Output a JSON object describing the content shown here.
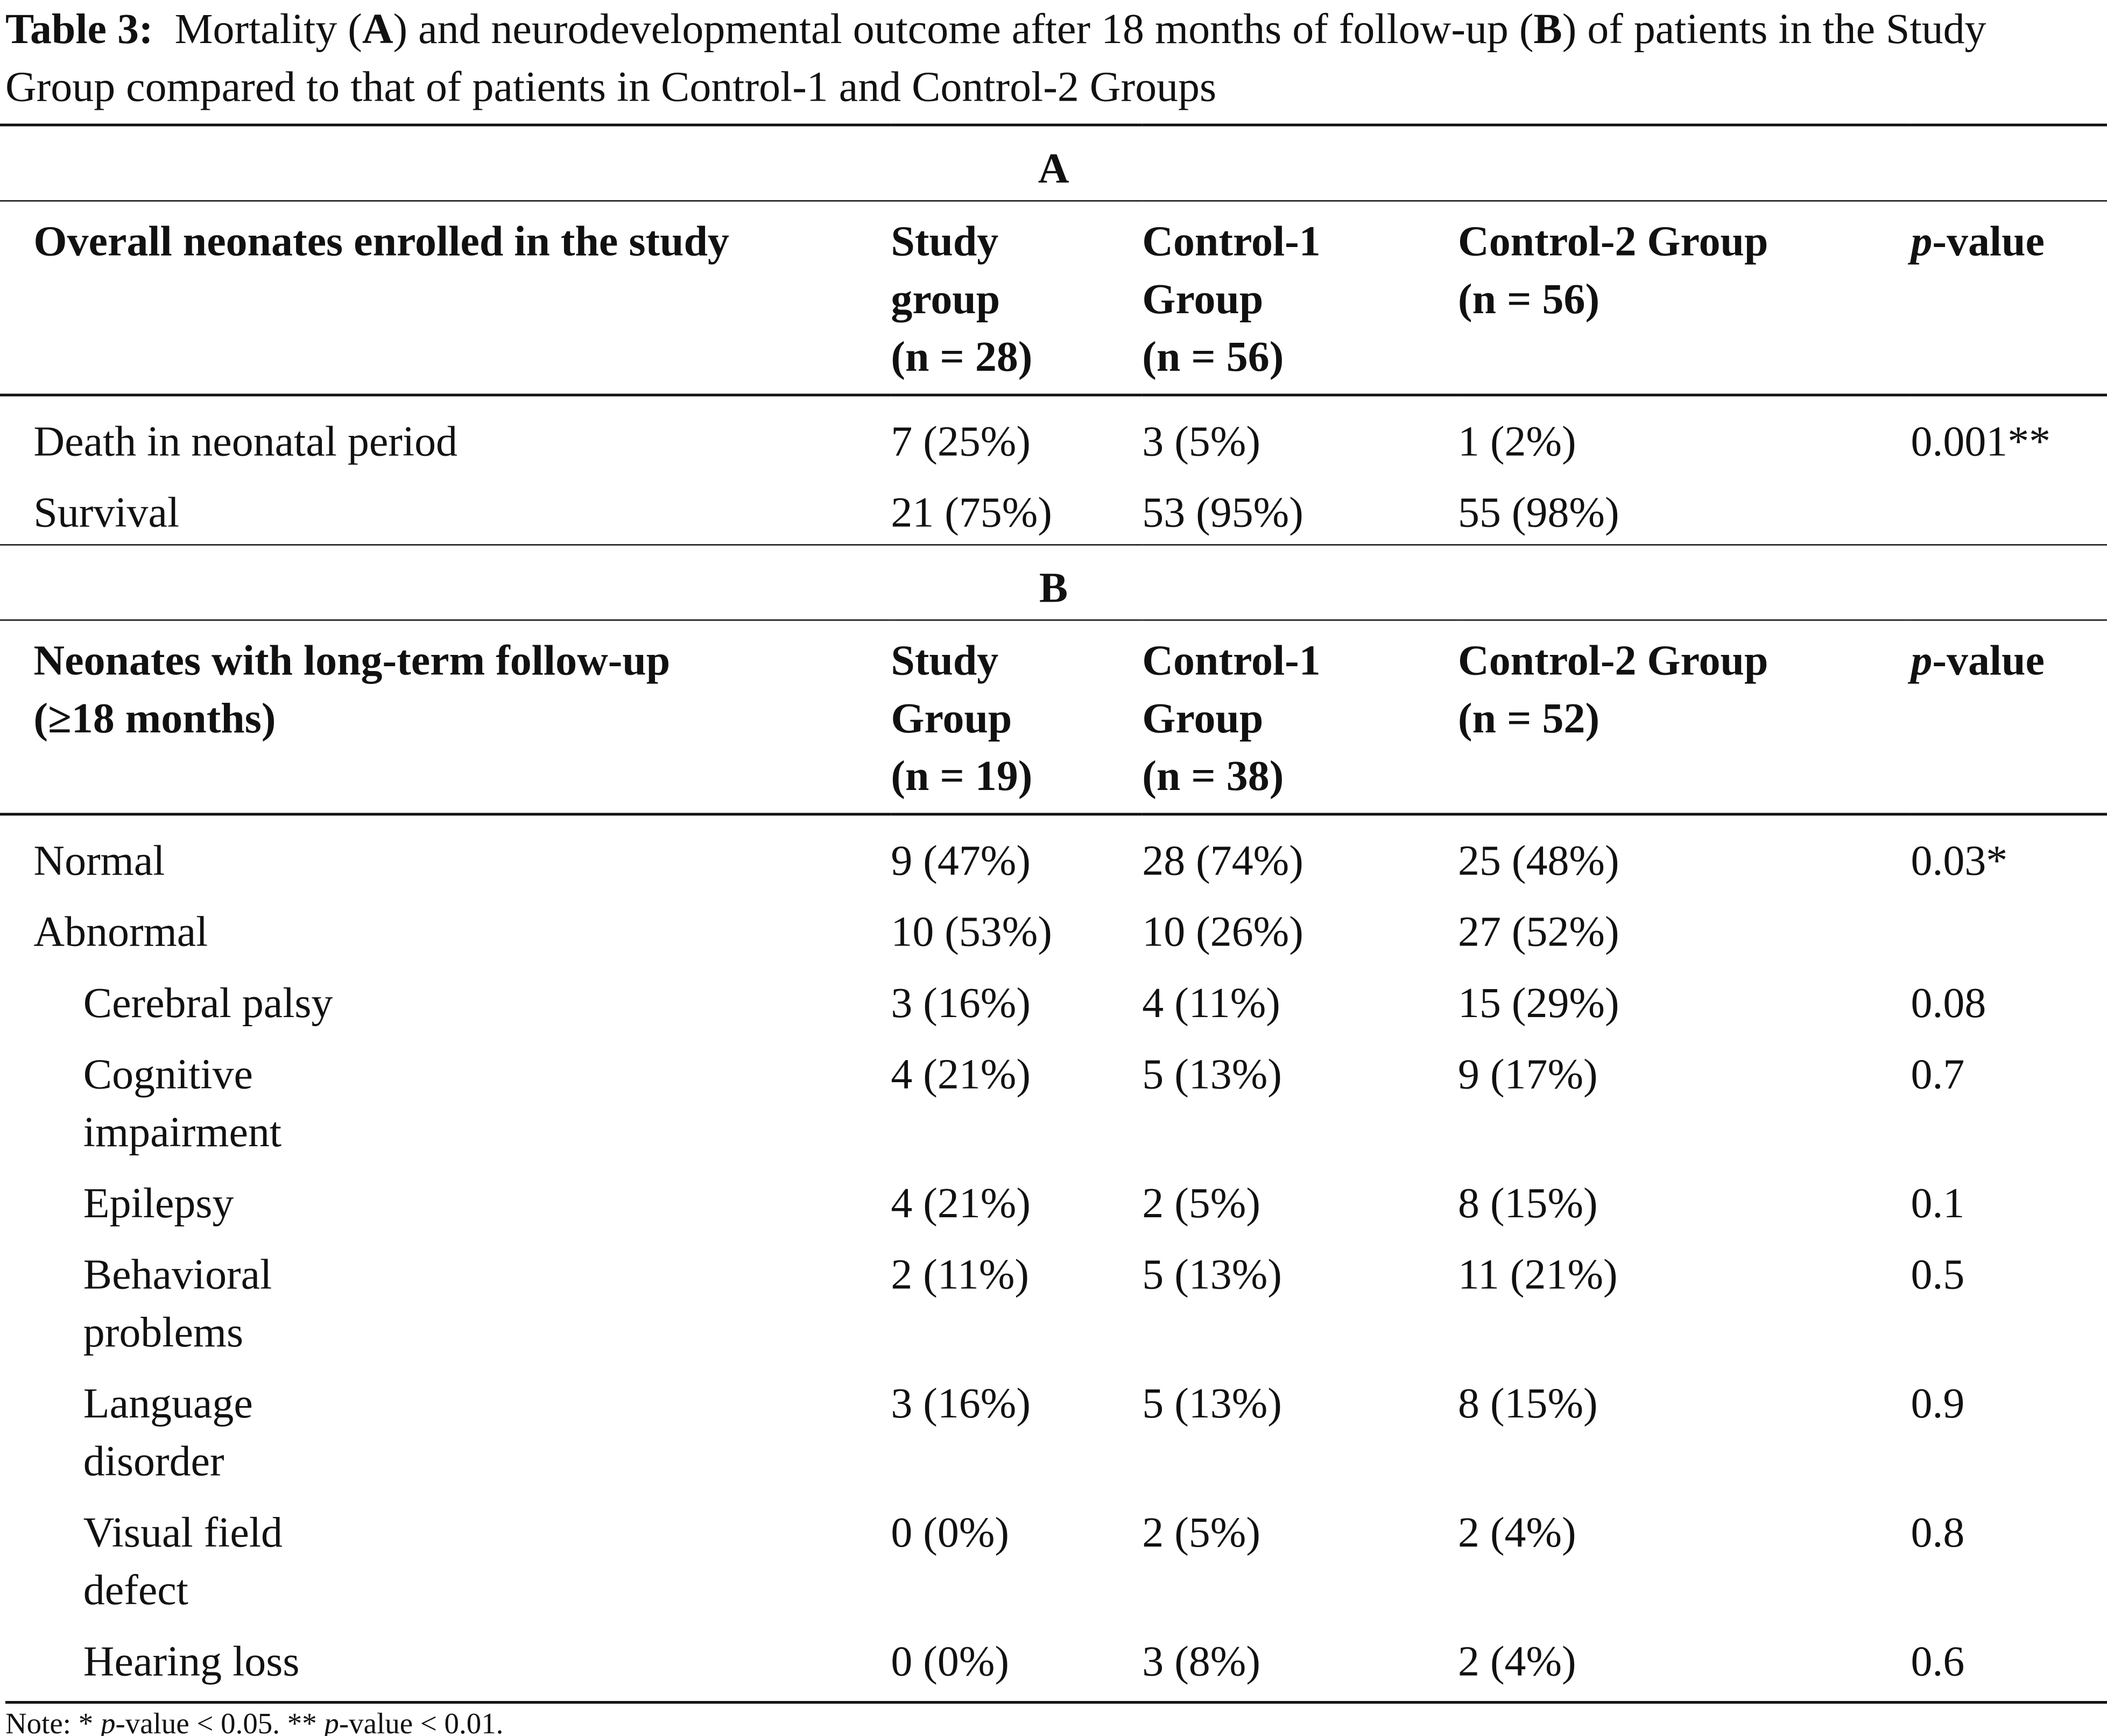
{
  "title": [
    "Table 3:",
    "  Mortality (",
    "A",
    ") and neurodevelopmental outcome after 18 months of follow-up (",
    "B",
    ") of patients in the Study Group compared to that of patients in Control-1 and Control-2 Groups"
  ],
  "sections": [
    {
      "label": "A",
      "header": [
        [
          "Overall neonates enrolled in the study"
        ],
        [
          "Study",
          "group",
          "(n = 28)"
        ],
        [
          "Control-1",
          "Group",
          "(n = 56)"
        ],
        [
          "Control-2 Group",
          "(n = 56)"
        ]
      ],
      "p_header": [
        "p",
        "-value"
      ],
      "rows": [
        [
          "Death in neonatal period",
          "7 (25%)",
          "3 (5%)",
          "1 (2%)",
          "0.001**"
        ],
        [
          "Survival",
          "21 (75%)",
          "53 (95%)",
          "55 (98%)",
          null
        ]
      ]
    },
    {
      "label": "B",
      "header": [
        [
          "Neonates with long-term follow-up",
          "(≥18 months)"
        ],
        [
          "Study",
          "Group",
          "(n = 19)"
        ],
        [
          "Control-1",
          "Group",
          "(n = 38)"
        ],
        [
          "Control-2 Group",
          "(n = 52)"
        ]
      ],
      "p_header": [
        "p",
        "-value"
      ],
      "rows": [
        [
          "Normal",
          "9 (47%)",
          "28 (74%)",
          "25 (48%)",
          "0.03*"
        ],
        [
          "Abnormal",
          "10 (53%)",
          "10 (26%)",
          "27 (52%)",
          null
        ]
      ],
      "subrows": [
        [
          "Cerebral palsy",
          "3 (16%)",
          "4 (11%)",
          "15 (29%)",
          "0.08"
        ],
        [
          "Cognitive impairment",
          "4 (21%)",
          "5 (13%)",
          "9 (17%)",
          "0.7"
        ],
        [
          "Epilepsy",
          "4 (21%)",
          "2 (5%)",
          "8 (15%)",
          "0.1"
        ],
        [
          "Behavioral problems",
          "2 (11%)",
          "5 (13%)",
          "11 (21%)",
          "0.5"
        ],
        [
          "Language disorder",
          "3 (16%)",
          "5 (13%)",
          "8 (15%)",
          "0.9"
        ],
        [
          "Visual field defect",
          "0 (0%)",
          "2 (5%)",
          "2 (4%)",
          "0.8"
        ],
        [
          "Hearing loss",
          "0 (0%)",
          "3 (8%)",
          "2 (4%)",
          "0.6"
        ]
      ]
    }
  ],
  "note": [
    "Note: * ",
    "p",
    "-value < 0.05. ** ",
    "p",
    "-value < 0.01."
  ]
}
